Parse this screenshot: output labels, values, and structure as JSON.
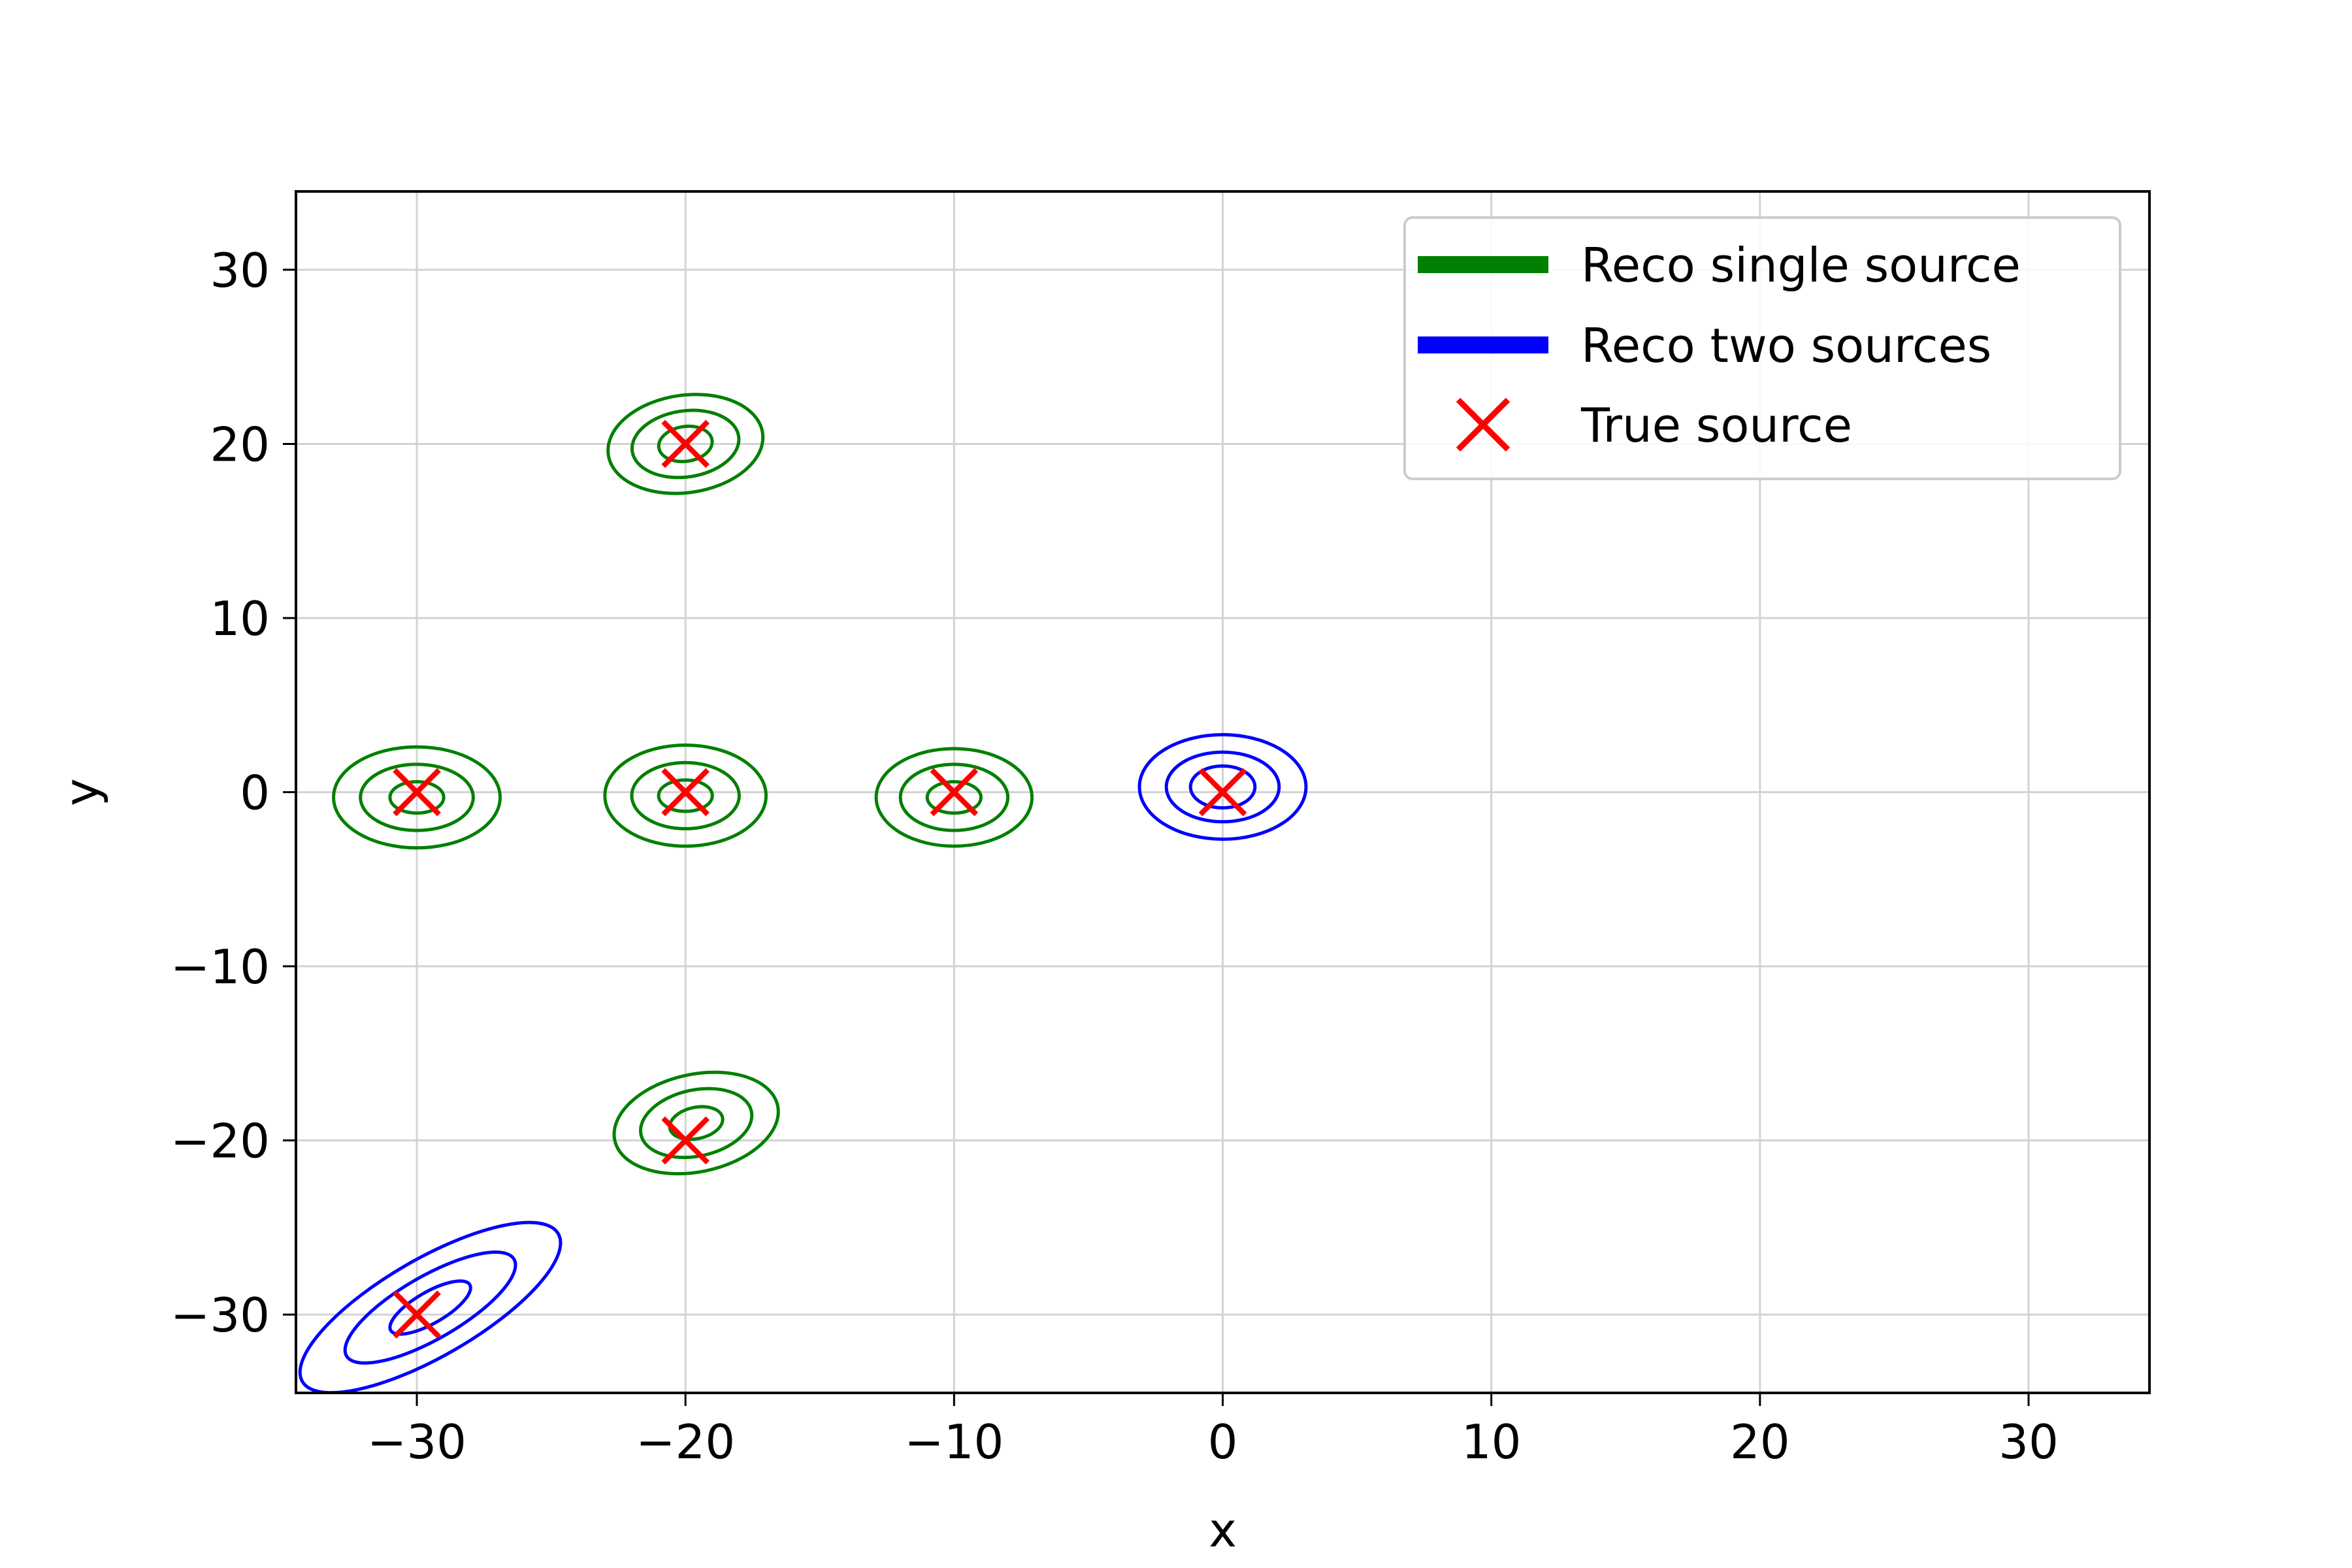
{
  "chart_data": {
    "type": "contour",
    "title": "",
    "xlabel": "x",
    "ylabel": "y",
    "xlim": [
      -34.5,
      34.5
    ],
    "ylim": [
      -34.5,
      34.5
    ],
    "xticks": [
      -30,
      -20,
      -10,
      0,
      10,
      20,
      30
    ],
    "yticks": [
      -30,
      -20,
      -10,
      0,
      10,
      20,
      30
    ],
    "xtick_labels": [
      "−30",
      "−20",
      "−10",
      "0",
      "10",
      "20",
      "30"
    ],
    "ytick_labels": [
      "−30",
      "−20",
      "−10",
      "0",
      "10",
      "20",
      "30"
    ],
    "grid": true,
    "legend_placement": "top-right",
    "colors": {
      "single": "#008000",
      "two": "#0000ff",
      "true": "#ff0000",
      "grid": "#d3d3d3"
    },
    "legend": [
      {
        "label": "Reco single source",
        "kind": "line",
        "color": "#008000"
      },
      {
        "label": "Reco two sources",
        "kind": "line",
        "color": "#0000ff"
      },
      {
        "label": "True source",
        "kind": "marker",
        "color": "#ff0000"
      }
    ],
    "series": [
      {
        "name": "Reco single source",
        "color": "#008000",
        "sources": [
          {
            "cx": -20,
            "cy": 20,
            "rx": [
              2.9,
              2.0,
              1.0
            ],
            "ry": [
              2.8,
              1.9,
              1.0
            ],
            "tilt": -8
          },
          {
            "cx": -30,
            "cy": -0.3,
            "rx": [
              3.1,
              2.1,
              1.0
            ],
            "ry": [
              2.9,
              1.9,
              0.9
            ],
            "tilt": 0
          },
          {
            "cx": -20,
            "cy": -0.2,
            "rx": [
              3.0,
              2.0,
              1.0
            ],
            "ry": [
              2.9,
              1.9,
              0.9
            ],
            "tilt": 0
          },
          {
            "cx": -10,
            "cy": -0.3,
            "rx": [
              2.9,
              2.0,
              1.0
            ],
            "ry": [
              2.8,
              1.9,
              0.9
            ],
            "tilt": 0
          },
          {
            "cx": -19.6,
            "cy": -19.0,
            "rx": [
              3.1,
              2.1,
              1.0
            ],
            "ry": [
              2.8,
              1.9,
              0.9
            ],
            "tilt": -12
          }
        ]
      },
      {
        "name": "Reco two sources",
        "color": "#0000ff",
        "sources": [
          {
            "cx": 0,
            "cy": 0.3,
            "rx": [
              3.1,
              2.1,
              1.2
            ],
            "ry": [
              3.0,
              2.0,
              1.2
            ],
            "tilt": 0
          },
          {
            "cx": -29.5,
            "cy": -29.6,
            "rx": [
              5.5,
              3.6,
              1.7
            ],
            "ry": [
              2.8,
              1.8,
              0.9
            ],
            "tilt": -30
          }
        ]
      }
    ],
    "true_sources": [
      {
        "x": -20,
        "y": 20
      },
      {
        "x": -30,
        "y": 0
      },
      {
        "x": -20,
        "y": 0
      },
      {
        "x": -10,
        "y": 0
      },
      {
        "x": 0,
        "y": 0
      },
      {
        "x": -20,
        "y": -20
      },
      {
        "x": -30,
        "y": -30
      }
    ]
  }
}
